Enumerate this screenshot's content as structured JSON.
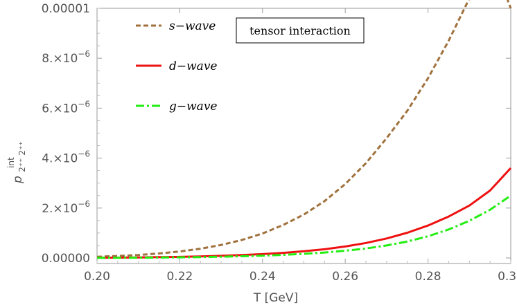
{
  "chart_data": {
    "type": "line",
    "xlabel": "T [GeV]",
    "ylabel": {
      "base": "p",
      "sup": "int",
      "sub": "2⁺⁺ 2⁺⁺"
    },
    "xlim": [
      0.2,
      0.3
    ],
    "ylim": [
      0,
      1e-05
    ],
    "x_ticks": [
      0.2,
      0.22,
      0.24,
      0.26,
      0.28,
      0.3
    ],
    "x_tick_labels": [
      "0.20",
      "0.22",
      "0.24",
      "0.26",
      "0.28",
      "0.30"
    ],
    "y_ticks": [
      0,
      2e-06,
      4e-06,
      6e-06,
      8e-06,
      1e-05
    ],
    "y_tick_labels": [
      {
        "mant": "0.00000",
        "exp": ""
      },
      {
        "mant": "2.×10",
        "exp": "−6"
      },
      {
        "mant": "4.×10",
        "exp": "−6"
      },
      {
        "mant": "6.×10",
        "exp": "−6"
      },
      {
        "mant": "8.×10",
        "exp": "−6"
      },
      {
        "mant": "0.00001",
        "exp": ""
      }
    ],
    "x": [
      0.2,
      0.205,
      0.21,
      0.215,
      0.22,
      0.225,
      0.23,
      0.235,
      0.24,
      0.245,
      0.25,
      0.255,
      0.26,
      0.265,
      0.27,
      0.275,
      0.28,
      0.285,
      0.29,
      0.295,
      0.3
    ],
    "series": [
      {
        "name": "s−wave",
        "color": "#a0713d",
        "dash": "dashed",
        "values": [
          5e-08,
          8e-08,
          1.2e-07,
          1.8e-07,
          2.6e-07,
          3.7e-07,
          5.2e-07,
          7.2e-07,
          9.8e-07,
          1.32e-06,
          1.74e-06,
          2.28e-06,
          2.96e-06,
          3.8e-06,
          4.8e-06,
          5.9e-06,
          7.2e-06,
          8.7e-06,
          1.04e-05,
          1.22e-05,
          1e-05
        ]
      },
      {
        "name": "d−wave",
        "color": "#ee1111",
        "dash": "solid",
        "values": [
          1e-08,
          1.5e-08,
          2.2e-08,
          3.2e-08,
          4.5e-08,
          6.2e-08,
          8.5e-08,
          1.15e-07,
          1.55e-07,
          2.05e-07,
          2.7e-07,
          3.5e-07,
          4.6e-07,
          6e-07,
          7.8e-07,
          1.01e-06,
          1.3e-06,
          1.66e-06,
          2.1e-06,
          2.7e-06,
          3.6e-06
        ]
      },
      {
        "name": "g−wave",
        "color": "#22ee11",
        "dash": "dashdot",
        "values": [
          5e-09,
          8e-09,
          1.2e-08,
          1.8e-08,
          2.6e-08,
          3.6e-08,
          5e-08,
          6.8e-08,
          9.2e-08,
          1.24e-07,
          1.65e-07,
          2.2e-07,
          2.9e-07,
          3.8e-07,
          5e-07,
          6.6e-07,
          8.7e-07,
          1.14e-06,
          1.49e-06,
          1.93e-06,
          2.5e-06
        ]
      }
    ],
    "annotation": "tensor interaction",
    "legend_position": "top-left",
    "grid": false
  }
}
